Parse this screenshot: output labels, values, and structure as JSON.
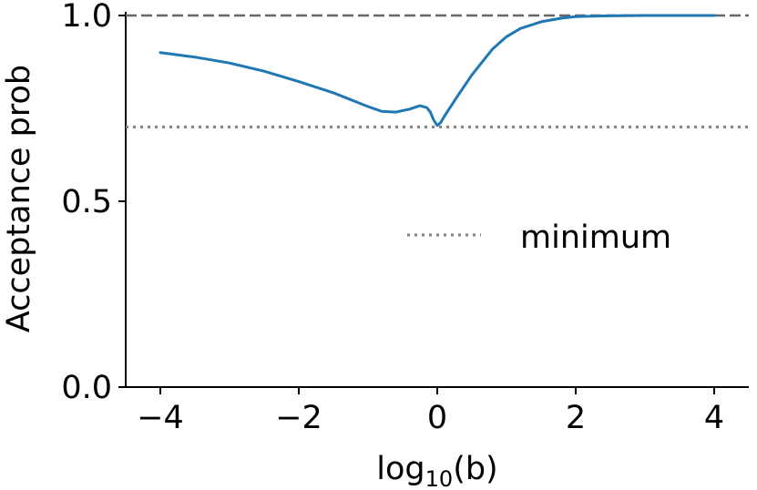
{
  "chart_data": {
    "type": "line",
    "xlabel": "log",
    "xlabel_sub": "10",
    "xlabel_arg": "(b)",
    "ylabel": "Acceptance prob",
    "xlim": [
      -4.5,
      4.5
    ],
    "ylim": [
      0.0,
      1.0
    ],
    "xticks": [
      -4,
      -2,
      0,
      2,
      4
    ],
    "xtick_labels": [
      "−4",
      "−2",
      "0",
      "2",
      "4"
    ],
    "yticks": [
      0.0,
      0.5,
      1.0
    ],
    "ytick_labels": [
      "0.0",
      "0.5",
      "1.0"
    ],
    "grid": false,
    "legend_position": "right",
    "series": [
      {
        "color": "#1f77b4",
        "style": "solid",
        "x": [
          -4.0,
          -3.5,
          -3.0,
          -2.5,
          -2.0,
          -1.5,
          -1.0,
          -0.8,
          -0.6,
          -0.4,
          -0.25,
          -0.15,
          -0.1,
          -0.05,
          0.0,
          0.05,
          0.1,
          0.3,
          0.5,
          0.8,
          1.0,
          1.2,
          1.5,
          1.8,
          2.0,
          2.5,
          3.0,
          3.5,
          4.0
        ],
        "y": [
          0.9,
          0.888,
          0.872,
          0.85,
          0.822,
          0.792,
          0.755,
          0.742,
          0.74,
          0.748,
          0.757,
          0.752,
          0.74,
          0.718,
          0.704,
          0.712,
          0.728,
          0.785,
          0.84,
          0.91,
          0.943,
          0.965,
          0.983,
          0.993,
          0.997,
          0.999,
          1.0,
          1.0,
          1.0
        ]
      }
    ],
    "reference_lines": [
      {
        "y": 1.0,
        "style": "dashed",
        "color": "#666666"
      },
      {
        "y": 0.7,
        "style": "dotted",
        "color": "#7f7f7f",
        "label": "minimum"
      }
    ],
    "legend": [
      {
        "label": "minimum",
        "style": "dotted",
        "color": "#7f7f7f"
      }
    ]
  }
}
